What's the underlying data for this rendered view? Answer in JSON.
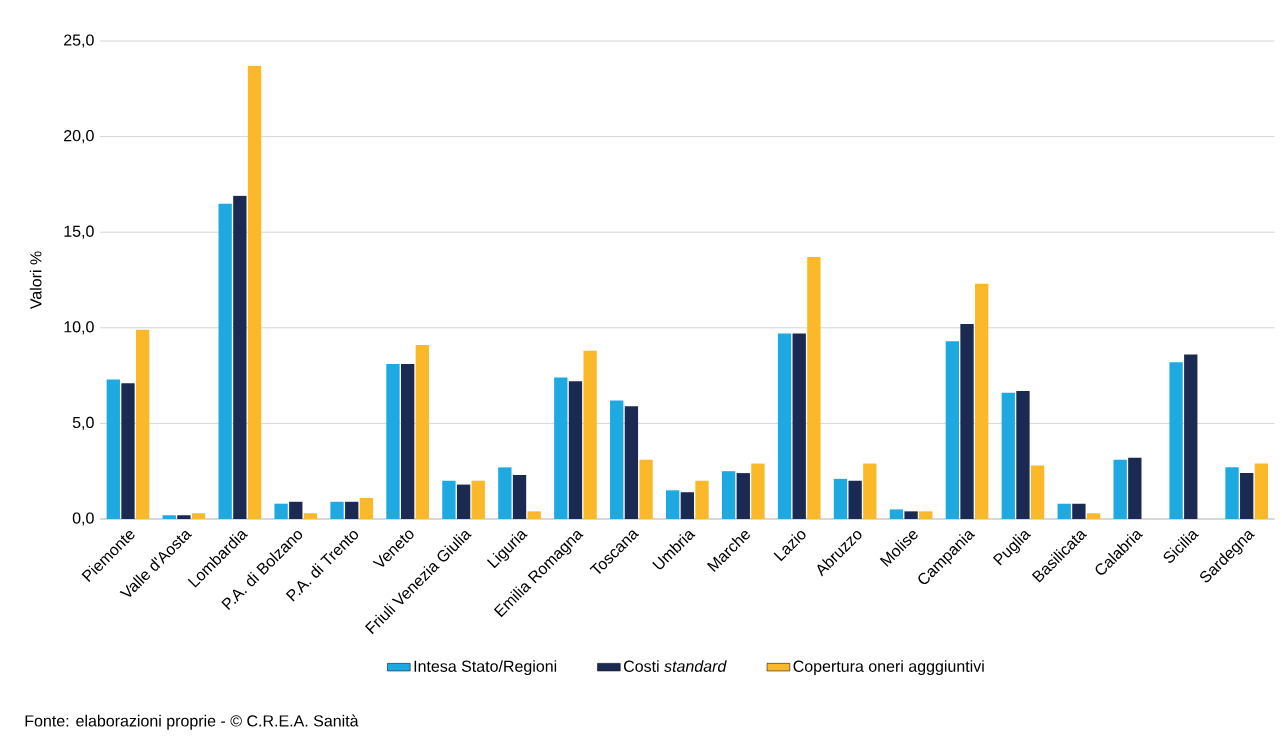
{
  "chart_data": {
    "type": "bar",
    "ylabel": "Valori %",
    "categories": [
      "Piemonte",
      "Valle d'Aosta",
      "Lombardia",
      "P.A. di Bolzano",
      "P.A. di Trento",
      "Veneto",
      "Friuli Venezia Giulia",
      "Liguria",
      "Emilia Romagna",
      "Toscana",
      "Umbria",
      "Marche",
      "Lazio",
      "Abruzzo",
      "Molise",
      "Campania",
      "Puglia",
      "Basilicata",
      "Calabria",
      "Sicilia",
      "Sardegna"
    ],
    "series": [
      {
        "name": "Intesa Stato/Regioni",
        "color": "#1fa9e1",
        "values": [
          7.3,
          0.2,
          16.5,
          0.8,
          0.9,
          8.1,
          2.0,
          2.7,
          7.4,
          6.2,
          1.5,
          2.5,
          9.7,
          2.1,
          0.5,
          9.3,
          6.6,
          0.8,
          3.1,
          8.2,
          2.7
        ]
      },
      {
        "name": "Costi *standard*",
        "color": "#1b2a52",
        "values": [
          7.1,
          0.2,
          16.9,
          0.9,
          0.9,
          8.1,
          1.8,
          2.3,
          7.2,
          5.9,
          1.4,
          2.4,
          9.7,
          2.0,
          0.4,
          10.2,
          6.7,
          0.8,
          3.2,
          8.6,
          2.4
        ]
      },
      {
        "name": "Copertura oneri agggiuntivi",
        "color": "#fbb829",
        "values": [
          9.9,
          0.3,
          23.7,
          0.3,
          1.1,
          9.1,
          2.0,
          0.4,
          8.8,
          3.1,
          2.0,
          2.9,
          13.7,
          2.9,
          0.4,
          12.3,
          2.8,
          0.3,
          null,
          null,
          2.9
        ]
      }
    ],
    "ylim": [
      0,
      25
    ],
    "yticks": [
      {
        "value": 0,
        "label": "0,0"
      },
      {
        "value": 5,
        "label": "5,0"
      },
      {
        "value": 10,
        "label": "10,0"
      },
      {
        "value": 15,
        "label": "15,0"
      },
      {
        "value": 20,
        "label": "20,0"
      },
      {
        "value": 25,
        "label": "25,0"
      }
    ],
    "grid": "y",
    "legend": "bottom",
    "annotations": [
      "Fonte: elaborazioni proprie - © C.R.E.A. Sanità"
    ]
  }
}
